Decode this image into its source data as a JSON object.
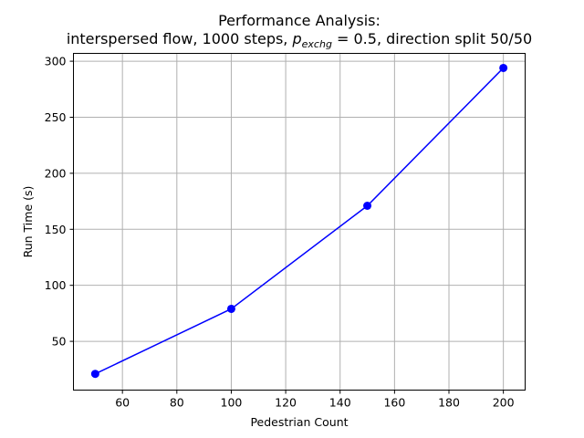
{
  "chart_data": {
    "type": "line",
    "title": {
      "line1": "Performance Analysis:",
      "line2_prefix": "interspersed flow, 1000 steps, ",
      "line2_var": "p",
      "line2_sub": "exchg",
      "line2_suffix": " = 0.5, direction split 50/50"
    },
    "xlabel": "Pedestrian Count",
    "ylabel": "Run Time (s)",
    "xlim": [
      42,
      208
    ],
    "ylim": [
      6.5,
      307
    ],
    "xticks": [
      60,
      80,
      100,
      120,
      140,
      160,
      180,
      200
    ],
    "yticks": [
      50,
      100,
      150,
      200,
      250,
      300
    ],
    "grid": true,
    "series": [
      {
        "color": "#0000ff",
        "marker": "circle",
        "x": [
          50,
          100,
          150,
          200
        ],
        "y": [
          21,
          79,
          171,
          294
        ]
      }
    ]
  }
}
